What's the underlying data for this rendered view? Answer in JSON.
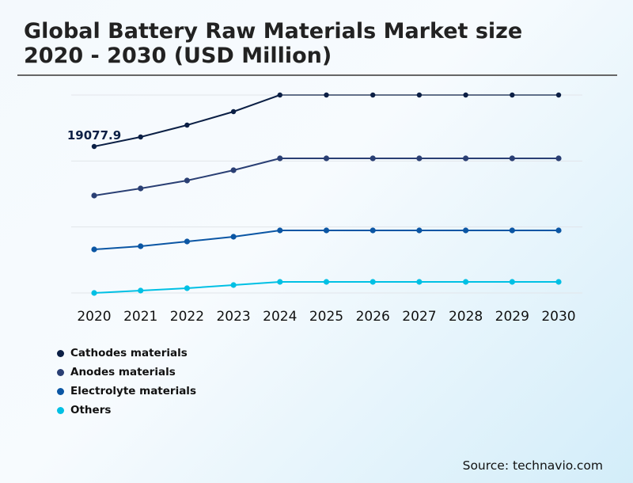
{
  "title_line1": "Global Battery Raw Materials Market size",
  "title_line2": "2020 - 2030 (USD Million)",
  "source": "Source: technavio.com",
  "chart_data": {
    "type": "line",
    "categories": [
      "2020",
      "2021",
      "2022",
      "2023",
      "2024",
      "2025",
      "2026",
      "2027",
      "2028",
      "2029",
      "2030"
    ],
    "ylim": [
      0,
      25781
    ],
    "grid": true,
    "legend_placement": "bottom-left",
    "annotation": "19077.9",
    "series": [
      {
        "name": "Cathodes materials",
        "color": "#0b1f45",
        "values": [
          19077.9,
          20315,
          21862,
          23615,
          25781,
          25781,
          25781,
          25781,
          25781,
          25781,
          25781
        ]
      },
      {
        "name": "Anodes materials",
        "color": "#2a3f74",
        "values": [
          12684,
          13612,
          14643,
          15984,
          17531,
          17531,
          17531,
          17531,
          17531,
          17531,
          17531
        ]
      },
      {
        "name": "Electrolyte materials",
        "color": "#0b56a4",
        "values": [
          5672,
          6084,
          6703,
          7322,
          8147,
          8147,
          8147,
          8147,
          8147,
          8147,
          8147
        ]
      },
      {
        "name": "Others",
        "color": "#00c0e4",
        "values": [
          0,
          309,
          619,
          1031,
          1444,
          1444,
          1444,
          1444,
          1444,
          1444,
          1444
        ]
      }
    ]
  }
}
